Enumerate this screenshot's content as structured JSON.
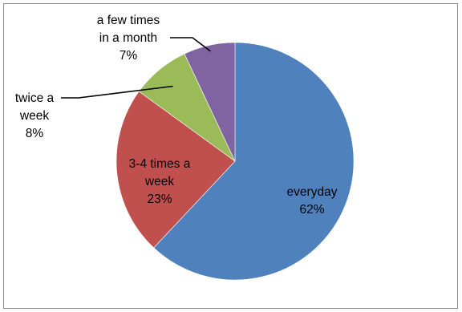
{
  "chart_data": {
    "type": "pie",
    "title": "",
    "start_angle_deg": 0,
    "direction": "clockwise",
    "legend": "none",
    "slices": [
      {
        "category_lines": [
          "everyday"
        ],
        "value": 62,
        "value_label": "62%",
        "color": "#4f81bd",
        "label_placement": "inside"
      },
      {
        "category_lines": [
          "3-4 times a",
          "week"
        ],
        "value": 23,
        "value_label": "23%",
        "color": "#c0504d",
        "label_placement": "inside"
      },
      {
        "category_lines": [
          "twice a",
          "week"
        ],
        "value": 8,
        "value_label": "8%",
        "color": "#9bbb59",
        "label_placement": "outside-left"
      },
      {
        "category_lines": [
          "a few times",
          "in a month"
        ],
        "value": 7,
        "value_label": "7%",
        "color": "#8064a2",
        "label_placement": "outside-top"
      }
    ]
  }
}
